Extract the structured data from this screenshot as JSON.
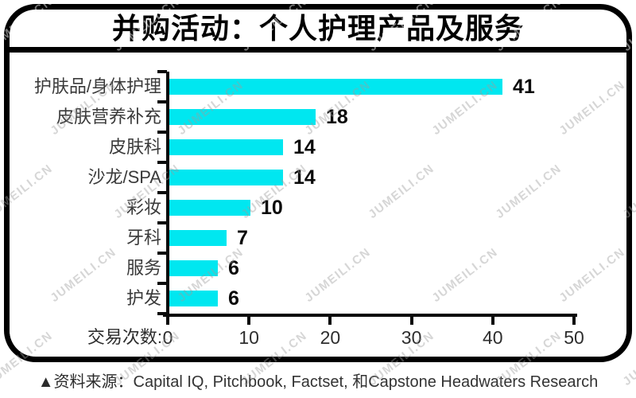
{
  "title": "并购活动：个人护理产品及服务",
  "colors": {
    "accent_cyan": "#00e7f0",
    "bar": "#00e7f0",
    "axis": "#0a0a0a",
    "category_text": "#3a3a3a",
    "value_text": "#0a0a0a",
    "watermark_gray": "rgba(158,158,158,0.42)",
    "watermark_on_cyan": "rgba(255,255,255,0.45)"
  },
  "watermark": {
    "text": "JUMEILI.CN"
  },
  "chart_data": {
    "type": "bar",
    "orientation": "horizontal",
    "title": "并购活动：个人护理产品及服务",
    "categories": [
      "护肤品/身体护理",
      "皮肤营养补充",
      "皮肤科",
      "沙龙/SPA",
      "彩妆",
      "牙科",
      "服务",
      "护发"
    ],
    "values": [
      41,
      18,
      14,
      14,
      10,
      7,
      6,
      6
    ],
    "xlabel": "交易次数:",
    "ylabel": "",
    "xticks": [
      0,
      10,
      20,
      30,
      40,
      50
    ],
    "xlim": [
      0,
      50
    ],
    "grid": false,
    "value_labels": true,
    "legend": "none"
  },
  "footer": {
    "source_prefix": "▲资料来源：",
    "source_text": "Capital IQ, Pitchbook, Factset, 和Capstone Headwaters Research"
  }
}
